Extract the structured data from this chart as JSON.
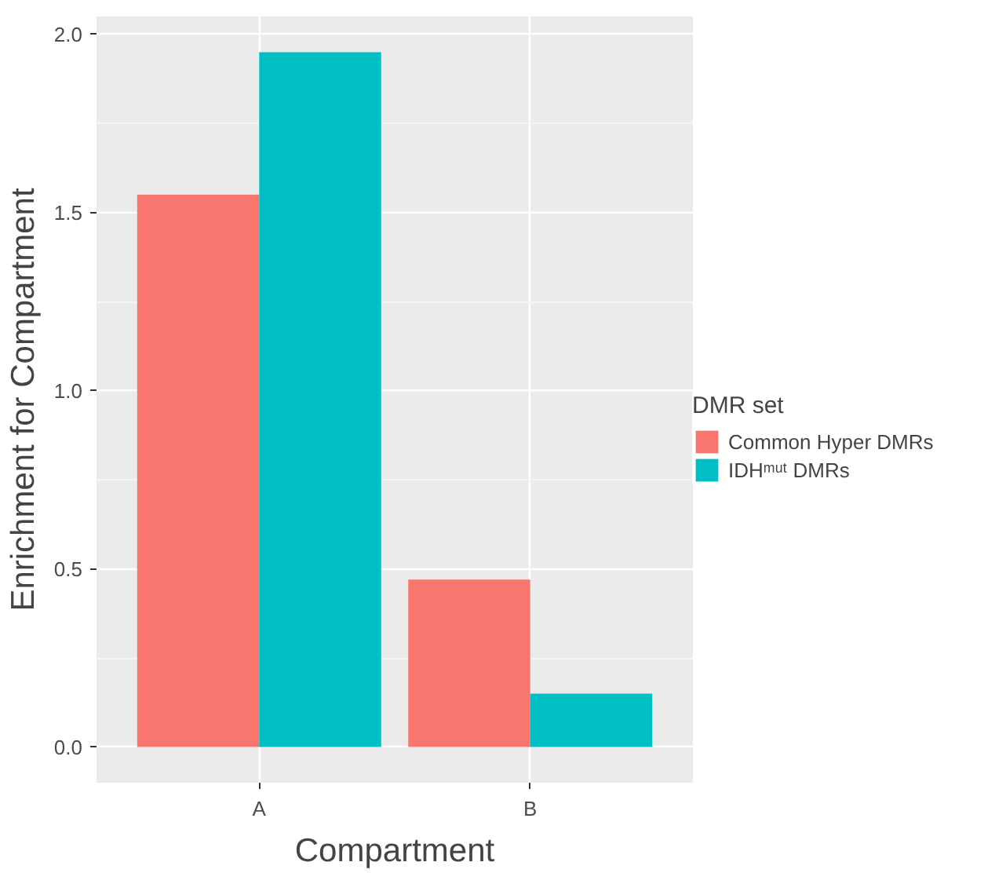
{
  "chart_data": {
    "type": "bar",
    "xlabel": "Compartment",
    "ylabel": "Enrichment for Compartment",
    "legend_title": "DMR set",
    "categories": [
      "A",
      "B"
    ],
    "series": [
      {
        "name": "Common Hyper DMRs",
        "color": "#f8766d",
        "values": [
          1.55,
          0.47
        ]
      },
      {
        "name": "IDHᵐᵘᵗ DMRs",
        "color": "#00bfc4",
        "values": [
          1.95,
          0.15
        ]
      }
    ],
    "ylim": [
      -0.1,
      2.05
    ],
    "yticks": [
      {
        "value": 0,
        "label": "0.0"
      },
      0.5,
      {
        "value": 1,
        "label": "1.0"
      },
      1.5,
      {
        "value": 2,
        "label": "2.0"
      }
    ],
    "grid": true,
    "legend": "right"
  }
}
